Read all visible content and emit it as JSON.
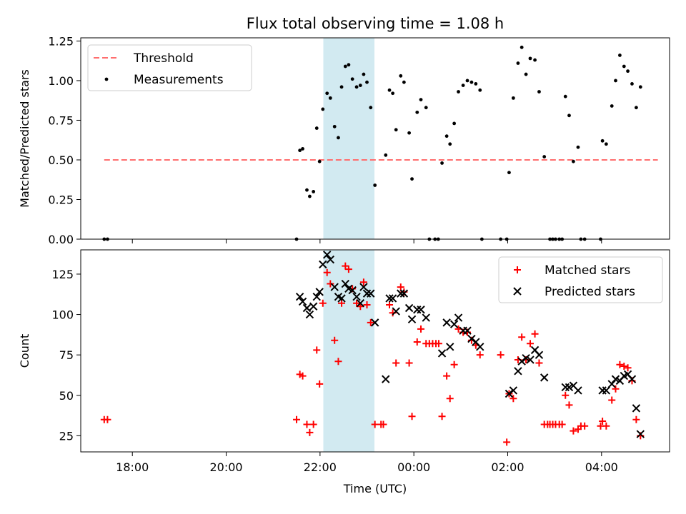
{
  "title": "Flux total observing time = 1.08 h",
  "chart_data": [
    {
      "type": "scatter",
      "ylabel": "Matched/Predicted stars",
      "xlabel": "",
      "xlim": [
        16.9,
        29.45
      ],
      "ylim": [
        0.0,
        1.27
      ],
      "yticks": [
        "0.00",
        "0.25",
        "0.50",
        "0.75",
        "1.00",
        "1.25"
      ],
      "shaded_span": {
        "x0": 22.07,
        "x1": 23.16,
        "color": "#add8e6"
      },
      "threshold": {
        "label": "Threshold",
        "y": 0.5,
        "x0": 17.4,
        "x1": 29.2,
        "color": "#ff6e6e"
      },
      "legend": [
        "Threshold",
        "Measurements"
      ],
      "legend_loc": "upper left",
      "series": [
        {
          "name": "Measurements",
          "marker": "dot",
          "color": "#000000",
          "points": [
            [
              17.4,
              0.0
            ],
            [
              17.47,
              0.0
            ],
            [
              21.5,
              0.0
            ],
            [
              21.57,
              0.56
            ],
            [
              21.63,
              0.57
            ],
            [
              21.72,
              0.31
            ],
            [
              21.78,
              0.27
            ],
            [
              21.86,
              0.3
            ],
            [
              21.93,
              0.7
            ],
            [
              21.99,
              0.49
            ],
            [
              22.06,
              0.82
            ],
            [
              22.15,
              0.92
            ],
            [
              22.22,
              0.89
            ],
            [
              22.31,
              0.71
            ],
            [
              22.39,
              0.64
            ],
            [
              22.46,
              0.96
            ],
            [
              22.54,
              1.09
            ],
            [
              22.61,
              1.1
            ],
            [
              22.69,
              1.01
            ],
            [
              22.78,
              0.96
            ],
            [
              22.86,
              0.97
            ],
            [
              22.93,
              1.04
            ],
            [
              23.0,
              0.99
            ],
            [
              23.08,
              0.83
            ],
            [
              23.17,
              0.34
            ],
            [
              23.4,
              0.53
            ],
            [
              23.48,
              0.94
            ],
            [
              23.55,
              0.92
            ],
            [
              23.62,
              0.69
            ],
            [
              23.72,
              1.03
            ],
            [
              23.79,
              0.99
            ],
            [
              23.9,
              0.67
            ],
            [
              23.96,
              0.38
            ],
            [
              24.07,
              0.8
            ],
            [
              24.15,
              0.88
            ],
            [
              24.26,
              0.83
            ],
            [
              24.33,
              0.0
            ],
            [
              24.45,
              0.0
            ],
            [
              24.52,
              0.0
            ],
            [
              24.6,
              0.48
            ],
            [
              24.7,
              0.65
            ],
            [
              24.77,
              0.6
            ],
            [
              24.86,
              0.73
            ],
            [
              24.95,
              0.93
            ],
            [
              25.05,
              0.97
            ],
            [
              25.14,
              1.0
            ],
            [
              25.23,
              0.99
            ],
            [
              25.32,
              0.98
            ],
            [
              25.41,
              0.94
            ],
            [
              25.45,
              0.0
            ],
            [
              25.85,
              0.0
            ],
            [
              25.98,
              0.0
            ],
            [
              26.03,
              0.42
            ],
            [
              26.12,
              0.89
            ],
            [
              26.22,
              1.11
            ],
            [
              26.3,
              1.21
            ],
            [
              26.39,
              1.04
            ],
            [
              26.48,
              1.14
            ],
            [
              26.58,
              1.13
            ],
            [
              26.67,
              0.93
            ],
            [
              26.78,
              0.52
            ],
            [
              26.9,
              0.0
            ],
            [
              26.96,
              0.0
            ],
            [
              27.02,
              0.0
            ],
            [
              27.1,
              0.0
            ],
            [
              27.16,
              0.0
            ],
            [
              27.23,
              0.9
            ],
            [
              27.31,
              0.78
            ],
            [
              27.4,
              0.49
            ],
            [
              27.5,
              0.58
            ],
            [
              27.56,
              0.0
            ],
            [
              27.64,
              0.0
            ],
            [
              27.98,
              0.0
            ],
            [
              28.02,
              0.62
            ],
            [
              28.1,
              0.6
            ],
            [
              28.22,
              0.84
            ],
            [
              28.3,
              1.0
            ],
            [
              28.39,
              1.16
            ],
            [
              28.48,
              1.09
            ],
            [
              28.56,
              1.06
            ],
            [
              28.65,
              0.98
            ],
            [
              28.74,
              0.83
            ],
            [
              28.83,
              0.96
            ]
          ]
        }
      ]
    },
    {
      "type": "scatter",
      "ylabel": "Count",
      "xlabel": "Time (UTC)",
      "xlim": [
        16.9,
        29.45
      ],
      "ylim": [
        15,
        140
      ],
      "yticks": [
        "25",
        "50",
        "75",
        "100",
        "125"
      ],
      "xticks": [
        {
          "x": 18,
          "label": "18:00"
        },
        {
          "x": 20,
          "label": "20:00"
        },
        {
          "x": 22,
          "label": "22:00"
        },
        {
          "x": 24,
          "label": "00:00"
        },
        {
          "x": 26,
          "label": "02:00"
        },
        {
          "x": 28,
          "label": "04:00"
        }
      ],
      "shaded_span": {
        "x0": 22.07,
        "x1": 23.16,
        "color": "#add8e6"
      },
      "legend": [
        "Matched stars",
        "Predicted stars"
      ],
      "legend_loc": "upper right",
      "series": [
        {
          "name": "Matched stars",
          "marker": "plus",
          "color": "#ff0000",
          "points": [
            [
              17.4,
              35
            ],
            [
              17.47,
              35
            ],
            [
              21.5,
              35
            ],
            [
              21.57,
              63
            ],
            [
              21.63,
              62
            ],
            [
              21.72,
              32
            ],
            [
              21.78,
              27
            ],
            [
              21.86,
              32
            ],
            [
              21.93,
              78
            ],
            [
              21.99,
              57
            ],
            [
              22.06,
              107
            ],
            [
              22.15,
              126
            ],
            [
              22.22,
              119
            ],
            [
              22.31,
              84
            ],
            [
              22.39,
              71
            ],
            [
              22.46,
              107
            ],
            [
              22.54,
              130
            ],
            [
              22.61,
              128
            ],
            [
              22.69,
              116
            ],
            [
              22.78,
              107
            ],
            [
              22.86,
              105
            ],
            [
              22.93,
              120
            ],
            [
              23.0,
              106
            ],
            [
              23.08,
              95
            ],
            [
              23.17,
              32
            ],
            [
              23.3,
              32
            ],
            [
              23.35,
              32
            ],
            [
              23.48,
              106
            ],
            [
              23.55,
              101
            ],
            [
              23.62,
              70
            ],
            [
              23.72,
              117
            ],
            [
              23.79,
              114
            ],
            [
              23.9,
              70
            ],
            [
              23.96,
              37
            ],
            [
              24.07,
              83
            ],
            [
              24.15,
              91
            ],
            [
              24.26,
              82
            ],
            [
              24.33,
              82
            ],
            [
              24.4,
              82
            ],
            [
              24.47,
              82
            ],
            [
              24.53,
              82
            ],
            [
              24.6,
              37
            ],
            [
              24.7,
              62
            ],
            [
              24.77,
              48
            ],
            [
              24.86,
              69
            ],
            [
              24.95,
              91
            ],
            [
              25.05,
              89
            ],
            [
              25.14,
              89
            ],
            [
              25.23,
              84
            ],
            [
              25.32,
              81
            ],
            [
              25.41,
              75
            ],
            [
              25.85,
              75
            ],
            [
              25.98,
              21
            ],
            [
              26.03,
              51
            ],
            [
              26.12,
              48
            ],
            [
              26.22,
              72
            ],
            [
              26.3,
              86
            ],
            [
              26.39,
              72
            ],
            [
              26.48,
              82
            ],
            [
              26.58,
              88
            ],
            [
              26.67,
              70
            ],
            [
              26.78,
              32
            ],
            [
              26.85,
              32
            ],
            [
              26.9,
              32
            ],
            [
              26.96,
              32
            ],
            [
              27.02,
              32
            ],
            [
              27.1,
              32
            ],
            [
              27.16,
              32
            ],
            [
              27.23,
              50
            ],
            [
              27.31,
              44
            ],
            [
              27.4,
              28
            ],
            [
              27.5,
              29
            ],
            [
              27.56,
              31
            ],
            [
              27.64,
              31
            ],
            [
              27.98,
              31
            ],
            [
              28.02,
              34
            ],
            [
              28.1,
              31
            ],
            [
              28.22,
              47
            ],
            [
              28.3,
              54
            ],
            [
              28.39,
              69
            ],
            [
              28.48,
              68
            ],
            [
              28.56,
              67
            ],
            [
              28.65,
              59
            ],
            [
              28.74,
              35
            ],
            [
              28.83,
              25
            ]
          ]
        },
        {
          "name": "Predicted stars",
          "marker": "x",
          "color": "#000000",
          "points": [
            [
              21.57,
              111
            ],
            [
              21.63,
              108
            ],
            [
              21.72,
              104
            ],
            [
              21.78,
              100
            ],
            [
              21.86,
              105
            ],
            [
              21.93,
              111
            ],
            [
              21.99,
              114
            ],
            [
              22.06,
              131
            ],
            [
              22.15,
              137
            ],
            [
              22.22,
              134
            ],
            [
              22.31,
              117
            ],
            [
              22.39,
              111
            ],
            [
              22.46,
              110
            ],
            [
              22.54,
              119
            ],
            [
              22.61,
              116
            ],
            [
              22.69,
              115
            ],
            [
              22.78,
              111
            ],
            [
              22.86,
              107
            ],
            [
              22.93,
              117
            ],
            [
              23.0,
              113
            ],
            [
              23.08,
              113
            ],
            [
              23.17,
              95
            ],
            [
              23.4,
              60
            ],
            [
              23.48,
              110
            ],
            [
              23.55,
              110
            ],
            [
              23.62,
              102
            ],
            [
              23.72,
              113
            ],
            [
              23.79,
              113
            ],
            [
              23.9,
              104
            ],
            [
              23.96,
              97
            ],
            [
              24.07,
              103
            ],
            [
              24.15,
              103
            ],
            [
              24.26,
              98
            ],
            [
              24.6,
              76
            ],
            [
              24.7,
              95
            ],
            [
              24.77,
              80
            ],
            [
              24.86,
              94
            ],
            [
              24.95,
              98
            ],
            [
              25.05,
              90
            ],
            [
              25.14,
              90
            ],
            [
              25.23,
              85
            ],
            [
              25.32,
              83
            ],
            [
              25.41,
              80
            ],
            [
              26.03,
              51
            ],
            [
              26.12,
              53
            ],
            [
              26.22,
              65
            ],
            [
              26.3,
              71
            ],
            [
              26.39,
              73
            ],
            [
              26.48,
              72
            ],
            [
              26.58,
              78
            ],
            [
              26.67,
              75
            ],
            [
              26.78,
              61
            ],
            [
              27.23,
              55
            ],
            [
              27.31,
              55
            ],
            [
              27.4,
              56
            ],
            [
              27.5,
              53
            ],
            [
              28.02,
              53
            ],
            [
              28.1,
              53
            ],
            [
              28.22,
              57
            ],
            [
              28.3,
              60
            ],
            [
              28.39,
              59
            ],
            [
              28.48,
              62
            ],
            [
              28.56,
              63
            ],
            [
              28.65,
              60
            ],
            [
              28.74,
              42
            ],
            [
              28.83,
              26
            ]
          ]
        }
      ]
    }
  ]
}
